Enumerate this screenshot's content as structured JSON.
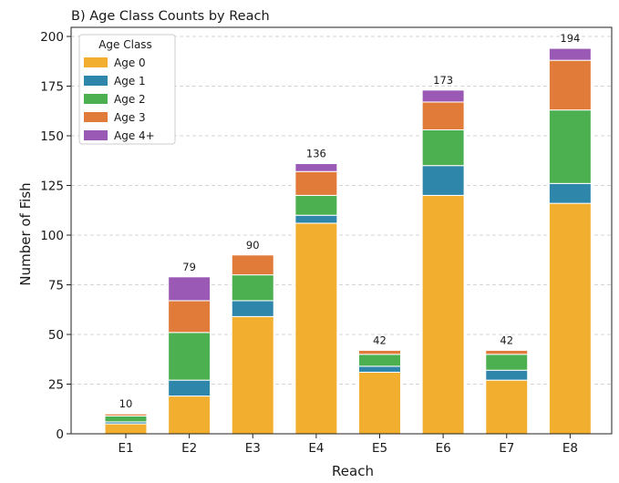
{
  "chart_data": {
    "type": "bar",
    "stacked": true,
    "title": "B)  Age Class Counts by Reach",
    "xlabel": "Reach",
    "ylabel": "Number of Fish",
    "ylim": [
      0,
      200
    ],
    "yticks": [
      0,
      25,
      50,
      75,
      100,
      125,
      150,
      175,
      200
    ],
    "grid": "horizontal dashed",
    "categories": [
      "E1",
      "E2",
      "E3",
      "E4",
      "E5",
      "E6",
      "E7",
      "E8"
    ],
    "totals": [
      10,
      79,
      90,
      136,
      42,
      173,
      42,
      194
    ],
    "legend": {
      "title": "Age Class",
      "position": "top-left"
    },
    "series": [
      {
        "name": "Age 0",
        "color": "#F2AE2E",
        "values": [
          5,
          19,
          59,
          106,
          31,
          120,
          27,
          116
        ]
      },
      {
        "name": "Age 1",
        "color": "#2E86AB",
        "values": [
          1,
          8,
          8,
          4,
          3,
          15,
          5,
          10
        ]
      },
      {
        "name": "Age 2",
        "color": "#4CAF50",
        "values": [
          3,
          24,
          13,
          10,
          6,
          18,
          8,
          37
        ]
      },
      {
        "name": "Age 3",
        "color": "#E07B39",
        "values": [
          1,
          16,
          10,
          12,
          2,
          14,
          2,
          25
        ]
      },
      {
        "name": "Age 4+",
        "color": "#9B59B6",
        "values": [
          0,
          12,
          0,
          4,
          0,
          6,
          0,
          6
        ]
      }
    ]
  }
}
